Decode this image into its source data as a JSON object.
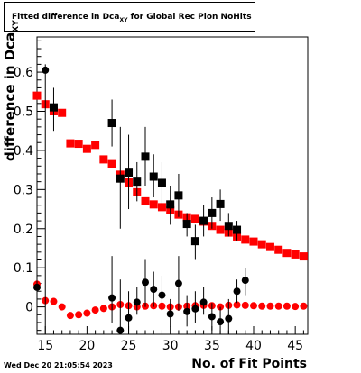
{
  "title": {
    "main": "Fitted difference in Dca",
    "sub": "XY",
    "rest": " for Global Rec Pion NoHits"
  },
  "labels": {
    "y_main": "difference in Dca",
    "y_sub": "XY",
    "x": "No. of Fit Points",
    "date": "Wed Dec 20 21:05:54 2023"
  },
  "colors": {
    "red": "#ff0000",
    "black": "#000000"
  },
  "chart_data": {
    "type": "scatter",
    "xlim": [
      14,
      46.5
    ],
    "ylim": [
      -0.07,
      0.69
    ],
    "x_ticks": [
      15,
      20,
      25,
      30,
      35,
      40,
      45
    ],
    "y_ticks": [
      0,
      0.1,
      0.2,
      0.3,
      0.4,
      0.5,
      0.6
    ],
    "y_tick_labels": [
      "0",
      "0.1",
      "0.2",
      "0.3",
      "0.4",
      "0.5",
      "0.6"
    ],
    "series": [
      {
        "marker": "square",
        "color": "red",
        "points": [
          [
            14,
            0.54
          ],
          [
            15,
            0.518
          ],
          [
            16,
            0.5
          ],
          [
            17,
            0.496
          ],
          [
            18,
            0.418
          ],
          [
            19,
            0.417
          ],
          [
            20,
            0.404
          ],
          [
            21,
            0.414
          ],
          [
            22,
            0.377
          ],
          [
            23,
            0.365
          ],
          [
            24,
            0.338
          ],
          [
            25,
            0.318
          ],
          [
            26,
            0.293
          ],
          [
            27,
            0.27
          ],
          [
            28,
            0.262
          ],
          [
            29,
            0.255
          ],
          [
            30,
            0.247
          ],
          [
            31,
            0.236
          ],
          [
            32,
            0.229
          ],
          [
            33,
            0.225
          ],
          [
            34,
            0.218
          ],
          [
            35,
            0.207
          ],
          [
            36,
            0.197
          ],
          [
            37,
            0.19
          ],
          [
            38,
            0.18
          ],
          [
            39,
            0.172
          ],
          [
            40,
            0.167
          ],
          [
            41,
            0.16
          ],
          [
            42,
            0.153
          ],
          [
            43,
            0.146
          ],
          [
            44,
            0.138
          ],
          [
            45,
            0.134
          ],
          [
            46,
            0.129
          ]
        ]
      },
      {
        "marker": "circle",
        "color": "red",
        "points": [
          [
            14,
            0.058
          ],
          [
            15,
            0.016
          ],
          [
            16,
            0.014
          ],
          [
            17,
            0.0
          ],
          [
            18,
            -0.022
          ],
          [
            19,
            -0.02
          ],
          [
            20,
            -0.016
          ],
          [
            21,
            -0.008
          ],
          [
            22,
            -0.004
          ],
          [
            23,
            0.0
          ],
          [
            24,
            0.006
          ],
          [
            25,
            0.003
          ],
          [
            26,
            0.0
          ],
          [
            27,
            0.002
          ],
          [
            28,
            0.003
          ],
          [
            29,
            0.002
          ],
          [
            30,
            0.0
          ],
          [
            31,
            0.0
          ],
          [
            32,
            0.002
          ],
          [
            33,
            0.003
          ],
          [
            34,
            0.004
          ],
          [
            35,
            0.003
          ],
          [
            36,
            0.0
          ],
          [
            37,
            0.004
          ],
          [
            38,
            0.005
          ],
          [
            39,
            0.004
          ],
          [
            40,
            0.003
          ],
          [
            41,
            0.002
          ],
          [
            42,
            0.002
          ],
          [
            43,
            0.002
          ],
          [
            44,
            0.002
          ],
          [
            45,
            0.001
          ],
          [
            46,
            0.002
          ]
        ]
      },
      {
        "marker": "square",
        "color": "black",
        "points": [
          [
            16,
            0.51
          ],
          [
            23,
            0.47
          ],
          [
            24,
            0.328
          ],
          [
            25,
            0.343
          ],
          [
            26,
            0.32
          ],
          [
            27,
            0.384
          ],
          [
            28,
            0.333
          ],
          [
            29,
            0.317
          ],
          [
            30,
            0.262
          ],
          [
            31,
            0.285
          ],
          [
            32,
            0.212
          ],
          [
            33,
            0.168
          ],
          [
            34,
            0.22
          ],
          [
            35,
            0.24
          ],
          [
            36,
            0.263
          ],
          [
            37,
            0.207
          ],
          [
            38,
            0.197
          ]
        ],
        "errors": [
          [
            16,
            0.45,
            0.56
          ],
          [
            23,
            0.41,
            0.53
          ],
          [
            24,
            0.2,
            0.46
          ],
          [
            25,
            0.25,
            0.44
          ],
          [
            26,
            0.27,
            0.37
          ],
          [
            27,
            0.31,
            0.46
          ],
          [
            28,
            0.28,
            0.39
          ],
          [
            29,
            0.26,
            0.37
          ],
          [
            30,
            0.21,
            0.31
          ],
          [
            31,
            0.23,
            0.34
          ],
          [
            32,
            0.18,
            0.24
          ],
          [
            33,
            0.12,
            0.21
          ],
          [
            34,
            0.18,
            0.26
          ],
          [
            35,
            0.2,
            0.28
          ],
          [
            36,
            0.22,
            0.3
          ],
          [
            37,
            0.18,
            0.24
          ],
          [
            38,
            0.17,
            0.22
          ]
        ]
      },
      {
        "marker": "circle",
        "color": "black",
        "points": [
          [
            14,
            0.05
          ],
          [
            15,
            0.605
          ],
          [
            23,
            0.023
          ],
          [
            24,
            -0.06
          ],
          [
            25,
            -0.028
          ],
          [
            26,
            0.012
          ],
          [
            27,
            0.063
          ],
          [
            28,
            0.045
          ],
          [
            29,
            0.03
          ],
          [
            30,
            -0.018
          ],
          [
            31,
            0.06
          ],
          [
            32,
            -0.012
          ],
          [
            33,
            -0.005
          ],
          [
            34,
            0.012
          ],
          [
            35,
            -0.025
          ],
          [
            36,
            -0.038
          ],
          [
            37,
            -0.03
          ],
          [
            38,
            0.04
          ],
          [
            39,
            0.068
          ]
        ],
        "errors": [
          [
            14,
            0.02,
            0.08
          ],
          [
            15,
            -0.07,
            0.62
          ],
          [
            23,
            -0.04,
            0.13
          ],
          [
            24,
            -0.07,
            0.07
          ],
          [
            25,
            -0.07,
            0.04
          ],
          [
            26,
            -0.02,
            0.05
          ],
          [
            27,
            0.0,
            0.12
          ],
          [
            28,
            0.0,
            0.09
          ],
          [
            29,
            -0.01,
            0.08
          ],
          [
            30,
            -0.05,
            0.02
          ],
          [
            31,
            -0.01,
            0.13
          ],
          [
            32,
            -0.05,
            0.03
          ],
          [
            33,
            -0.04,
            0.04
          ],
          [
            34,
            -0.02,
            0.05
          ],
          [
            35,
            -0.06,
            0.01
          ],
          [
            36,
            -0.07,
            0.0
          ],
          [
            37,
            -0.07,
            0.02
          ],
          [
            38,
            0.01,
            0.07
          ],
          [
            39,
            0.03,
            0.1
          ]
        ]
      }
    ]
  }
}
